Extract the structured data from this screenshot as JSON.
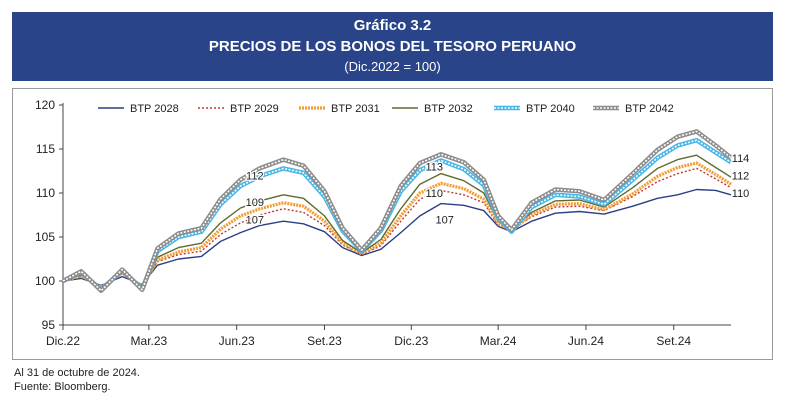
{
  "header": {
    "title": "Gráfico 3.2",
    "subtitle": "PRECIOS DE LOS BONOS DEL TESORO PERUANO",
    "base": "(Dic.2022 = 100)",
    "background_color": "#2a4489"
  },
  "notes": {
    "date_note": "Al 31 de octubre de 2024.",
    "source": "Fuente: Bloomberg."
  },
  "chart_data": {
    "type": "line",
    "title": "PRECIOS DE LOS BONOS DEL TESORO PERUANO",
    "ylim": [
      95,
      120
    ],
    "yticks": [
      95,
      100,
      105,
      110,
      115,
      120
    ],
    "xlim": [
      "2022-12-01",
      "2024-10-31"
    ],
    "x_ticks": [
      {
        "label": "Dic.22",
        "date": "2022-12-01"
      },
      {
        "label": "Mar.23",
        "date": "2023-03-01"
      },
      {
        "label": "Jun.23",
        "date": "2023-06-01"
      },
      {
        "label": "Set.23",
        "date": "2023-09-01"
      },
      {
        "label": "Dic.23",
        "date": "2023-12-01"
      },
      {
        "label": "Mar.24",
        "date": "2024-03-01"
      },
      {
        "label": "Jun.24",
        "date": "2024-06-01"
      },
      {
        "label": "Set.24",
        "date": "2024-09-01"
      }
    ],
    "grid": false,
    "legend_position": "top",
    "series": [
      {
        "name": "BTP 2028",
        "color": "#2b3f86",
        "style": "solid",
        "points": [
          [
            "2022-12-01",
            100
          ],
          [
            "2022-12-20",
            100.3
          ],
          [
            "2023-01-10",
            99.5
          ],
          [
            "2023-02-01",
            100.5
          ],
          [
            "2023-02-22",
            99.6
          ],
          [
            "2023-03-10",
            101.8
          ],
          [
            "2023-04-01",
            102.5
          ],
          [
            "2023-04-25",
            102.8
          ],
          [
            "2023-05-15",
            104.5
          ],
          [
            "2023-06-05",
            105.5
          ],
          [
            "2023-06-25",
            106.3
          ],
          [
            "2023-07-20",
            106.8
          ],
          [
            "2023-08-10",
            106.5
          ],
          [
            "2023-09-01",
            105.6
          ],
          [
            "2023-09-20",
            103.8
          ],
          [
            "2023-10-10",
            102.9
          ],
          [
            "2023-10-30",
            103.6
          ],
          [
            "2023-11-20",
            105.5
          ],
          [
            "2023-12-10",
            107.4
          ],
          [
            "2024-01-01",
            108.8
          ],
          [
            "2024-01-25",
            108.6
          ],
          [
            "2024-02-15",
            108.0
          ],
          [
            "2024-03-01",
            106.2
          ],
          [
            "2024-03-15",
            105.6
          ],
          [
            "2024-04-05",
            106.8
          ],
          [
            "2024-04-30",
            107.7
          ],
          [
            "2024-05-25",
            107.9
          ],
          [
            "2024-06-20",
            107.6
          ],
          [
            "2024-07-20",
            108.5
          ],
          [
            "2024-08-15",
            109.4
          ],
          [
            "2024-09-05",
            109.8
          ],
          [
            "2024-09-25",
            110.4
          ],
          [
            "2024-10-15",
            110.3
          ],
          [
            "2024-10-31",
            109.8
          ]
        ]
      },
      {
        "name": "BTP 2029",
        "color": "#c0392b",
        "style": "dotted",
        "points": [
          [
            "2022-12-01",
            100
          ],
          [
            "2022-12-20",
            100.5
          ],
          [
            "2023-01-10",
            99.4
          ],
          [
            "2023-02-01",
            100.8
          ],
          [
            "2023-02-22",
            99.5
          ],
          [
            "2023-03-10",
            102.2
          ],
          [
            "2023-04-01",
            103.0
          ],
          [
            "2023-04-25",
            103.4
          ],
          [
            "2023-05-15",
            105.3
          ],
          [
            "2023-06-05",
            106.6
          ],
          [
            "2023-06-25",
            107.5
          ],
          [
            "2023-07-20",
            108.2
          ],
          [
            "2023-08-10",
            107.8
          ],
          [
            "2023-09-01",
            106.3
          ],
          [
            "2023-09-20",
            104.1
          ],
          [
            "2023-10-10",
            103.0
          ],
          [
            "2023-10-30",
            104.0
          ],
          [
            "2023-11-20",
            106.8
          ],
          [
            "2023-12-10",
            109.3
          ],
          [
            "2024-01-01",
            110.3
          ],
          [
            "2024-01-25",
            109.8
          ],
          [
            "2024-02-15",
            108.9
          ],
          [
            "2024-03-01",
            106.3
          ],
          [
            "2024-03-15",
            105.8
          ],
          [
            "2024-04-05",
            107.3
          ],
          [
            "2024-04-30",
            108.4
          ],
          [
            "2024-05-25",
            108.5
          ],
          [
            "2024-06-20",
            108.0
          ],
          [
            "2024-07-20",
            109.6
          ],
          [
            "2024-08-15",
            111.3
          ],
          [
            "2024-09-05",
            112.2
          ],
          [
            "2024-09-25",
            112.8
          ],
          [
            "2024-10-15",
            111.6
          ],
          [
            "2024-10-31",
            110.6
          ]
        ]
      },
      {
        "name": "BTP 2031",
        "color": "#f39c35",
        "style": "thick",
        "points": [
          [
            "2022-12-01",
            100
          ],
          [
            "2022-12-20",
            100.6
          ],
          [
            "2023-01-10",
            99.3
          ],
          [
            "2023-02-01",
            100.9
          ],
          [
            "2023-02-22",
            99.4
          ],
          [
            "2023-03-10",
            102.4
          ],
          [
            "2023-04-01",
            103.3
          ],
          [
            "2023-04-25",
            103.8
          ],
          [
            "2023-05-15",
            105.9
          ],
          [
            "2023-06-05",
            107.4
          ],
          [
            "2023-06-25",
            108.2
          ],
          [
            "2023-07-20",
            108.9
          ],
          [
            "2023-08-10",
            108.5
          ],
          [
            "2023-09-01",
            106.8
          ],
          [
            "2023-09-20",
            104.3
          ],
          [
            "2023-10-10",
            103.1
          ],
          [
            "2023-10-30",
            104.3
          ],
          [
            "2023-11-20",
            107.4
          ],
          [
            "2023-12-10",
            110.0
          ],
          [
            "2024-01-01",
            111.1
          ],
          [
            "2024-01-25",
            110.5
          ],
          [
            "2024-02-15",
            109.3
          ],
          [
            "2024-03-01",
            106.5
          ],
          [
            "2024-03-15",
            105.8
          ],
          [
            "2024-04-05",
            107.5
          ],
          [
            "2024-04-30",
            108.7
          ],
          [
            "2024-05-25",
            108.8
          ],
          [
            "2024-06-20",
            108.1
          ],
          [
            "2024-07-20",
            109.9
          ],
          [
            "2024-08-15",
            111.9
          ],
          [
            "2024-09-05",
            112.9
          ],
          [
            "2024-09-25",
            113.4
          ],
          [
            "2024-10-15",
            112.1
          ],
          [
            "2024-10-31",
            111.0
          ]
        ]
      },
      {
        "name": "BTP 2032",
        "color": "#5f6b2c",
        "style": "solid",
        "points": [
          [
            "2022-12-01",
            100
          ],
          [
            "2022-12-20",
            100.7
          ],
          [
            "2023-01-10",
            99.2
          ],
          [
            "2023-02-01",
            101.0
          ],
          [
            "2023-02-22",
            99.3
          ],
          [
            "2023-03-10",
            102.7
          ],
          [
            "2023-04-01",
            103.8
          ],
          [
            "2023-04-25",
            104.3
          ],
          [
            "2023-05-15",
            106.6
          ],
          [
            "2023-06-05",
            108.3
          ],
          [
            "2023-06-25",
            109.1
          ],
          [
            "2023-07-20",
            109.8
          ],
          [
            "2023-08-10",
            109.4
          ],
          [
            "2023-09-01",
            107.4
          ],
          [
            "2023-09-20",
            104.6
          ],
          [
            "2023-10-10",
            103.2
          ],
          [
            "2023-10-30",
            104.7
          ],
          [
            "2023-11-20",
            108.2
          ],
          [
            "2023-12-10",
            111.0
          ],
          [
            "2024-01-01",
            112.2
          ],
          [
            "2024-01-25",
            111.4
          ],
          [
            "2024-02-15",
            110.0
          ],
          [
            "2024-03-01",
            106.8
          ],
          [
            "2024-03-15",
            105.9
          ],
          [
            "2024-04-05",
            107.8
          ],
          [
            "2024-04-30",
            109.1
          ],
          [
            "2024-05-25",
            109.2
          ],
          [
            "2024-06-20",
            108.4
          ],
          [
            "2024-07-20",
            110.6
          ],
          [
            "2024-08-15",
            112.8
          ],
          [
            "2024-09-05",
            113.8
          ],
          [
            "2024-09-25",
            114.3
          ],
          [
            "2024-10-15",
            112.9
          ],
          [
            "2024-10-31",
            111.8
          ]
        ]
      },
      {
        "name": "BTP 2040",
        "color": "#48b6e6",
        "style": "double",
        "points": [
          [
            "2022-12-01",
            100
          ],
          [
            "2022-12-20",
            101.0
          ],
          [
            "2023-01-10",
            99.0
          ],
          [
            "2023-02-01",
            101.2
          ],
          [
            "2023-02-22",
            99.1
          ],
          [
            "2023-03-10",
            103.4
          ],
          [
            "2023-04-01",
            105.0
          ],
          [
            "2023-04-25",
            105.6
          ],
          [
            "2023-05-15",
            108.7
          ],
          [
            "2023-06-05",
            110.8
          ],
          [
            "2023-06-25",
            111.9
          ],
          [
            "2023-07-20",
            112.8
          ],
          [
            "2023-08-10",
            112.3
          ],
          [
            "2023-09-01",
            109.6
          ],
          [
            "2023-09-20",
            105.7
          ],
          [
            "2023-10-10",
            103.4
          ],
          [
            "2023-10-30",
            105.7
          ],
          [
            "2023-11-20",
            110.2
          ],
          [
            "2023-12-10",
            112.6
          ],
          [
            "2024-01-01",
            113.7
          ],
          [
            "2024-01-25",
            112.7
          ],
          [
            "2024-02-15",
            110.9
          ],
          [
            "2024-03-01",
            107.1
          ],
          [
            "2024-03-15",
            105.6
          ],
          [
            "2024-04-05",
            108.4
          ],
          [
            "2024-04-30",
            109.8
          ],
          [
            "2024-05-25",
            109.6
          ],
          [
            "2024-06-20",
            108.7
          ],
          [
            "2024-07-20",
            111.5
          ],
          [
            "2024-08-15",
            114.0
          ],
          [
            "2024-09-05",
            115.4
          ],
          [
            "2024-09-25",
            116.0
          ],
          [
            "2024-10-15",
            114.6
          ],
          [
            "2024-10-31",
            113.5
          ]
        ]
      },
      {
        "name": "BTP 2042",
        "color": "#8c8c8c",
        "style": "double",
        "points": [
          [
            "2022-12-01",
            100
          ],
          [
            "2022-12-20",
            101.1
          ],
          [
            "2023-01-10",
            98.9
          ],
          [
            "2023-02-01",
            101.3
          ],
          [
            "2023-02-22",
            99.0
          ],
          [
            "2023-03-10",
            103.7
          ],
          [
            "2023-04-01",
            105.4
          ],
          [
            "2023-04-25",
            106.0
          ],
          [
            "2023-05-15",
            109.3
          ],
          [
            "2023-06-05",
            111.5
          ],
          [
            "2023-06-25",
            112.8
          ],
          [
            "2023-07-20",
            113.8
          ],
          [
            "2023-08-10",
            113.1
          ],
          [
            "2023-09-01",
            110.2
          ],
          [
            "2023-09-20",
            106.0
          ],
          [
            "2023-10-10",
            103.5
          ],
          [
            "2023-10-30",
            106.0
          ],
          [
            "2023-11-20",
            110.8
          ],
          [
            "2023-12-10",
            113.4
          ],
          [
            "2024-01-01",
            114.4
          ],
          [
            "2024-01-25",
            113.5
          ],
          [
            "2024-02-15",
            111.5
          ],
          [
            "2024-03-01",
            107.4
          ],
          [
            "2024-03-15",
            105.8
          ],
          [
            "2024-04-05",
            108.9
          ],
          [
            "2024-04-30",
            110.4
          ],
          [
            "2024-05-25",
            110.2
          ],
          [
            "2024-06-20",
            109.2
          ],
          [
            "2024-07-20",
            112.2
          ],
          [
            "2024-08-15",
            114.9
          ],
          [
            "2024-09-05",
            116.4
          ],
          [
            "2024-09-25",
            117.0
          ],
          [
            "2024-10-15",
            115.4
          ],
          [
            "2024-10-31",
            114.0
          ]
        ]
      }
    ],
    "annotations": [
      {
        "text": "112",
        "x": "2023-06-20",
        "y": 112
      },
      {
        "text": "109",
        "x": "2023-06-20",
        "y": 109
      },
      {
        "text": "107",
        "x": "2023-06-20",
        "y": 107
      },
      {
        "text": "113",
        "x": "2023-12-25",
        "y": 113
      },
      {
        "text": "110",
        "x": "2023-12-25",
        "y": 110
      },
      {
        "text": "107",
        "x": "2024-01-05",
        "y": 107
      },
      {
        "text": "114",
        "x": "2024-11-10",
        "y": 114
      },
      {
        "text": "112",
        "x": "2024-11-10",
        "y": 112
      },
      {
        "text": "110",
        "x": "2024-11-10",
        "y": 110
      }
    ]
  }
}
